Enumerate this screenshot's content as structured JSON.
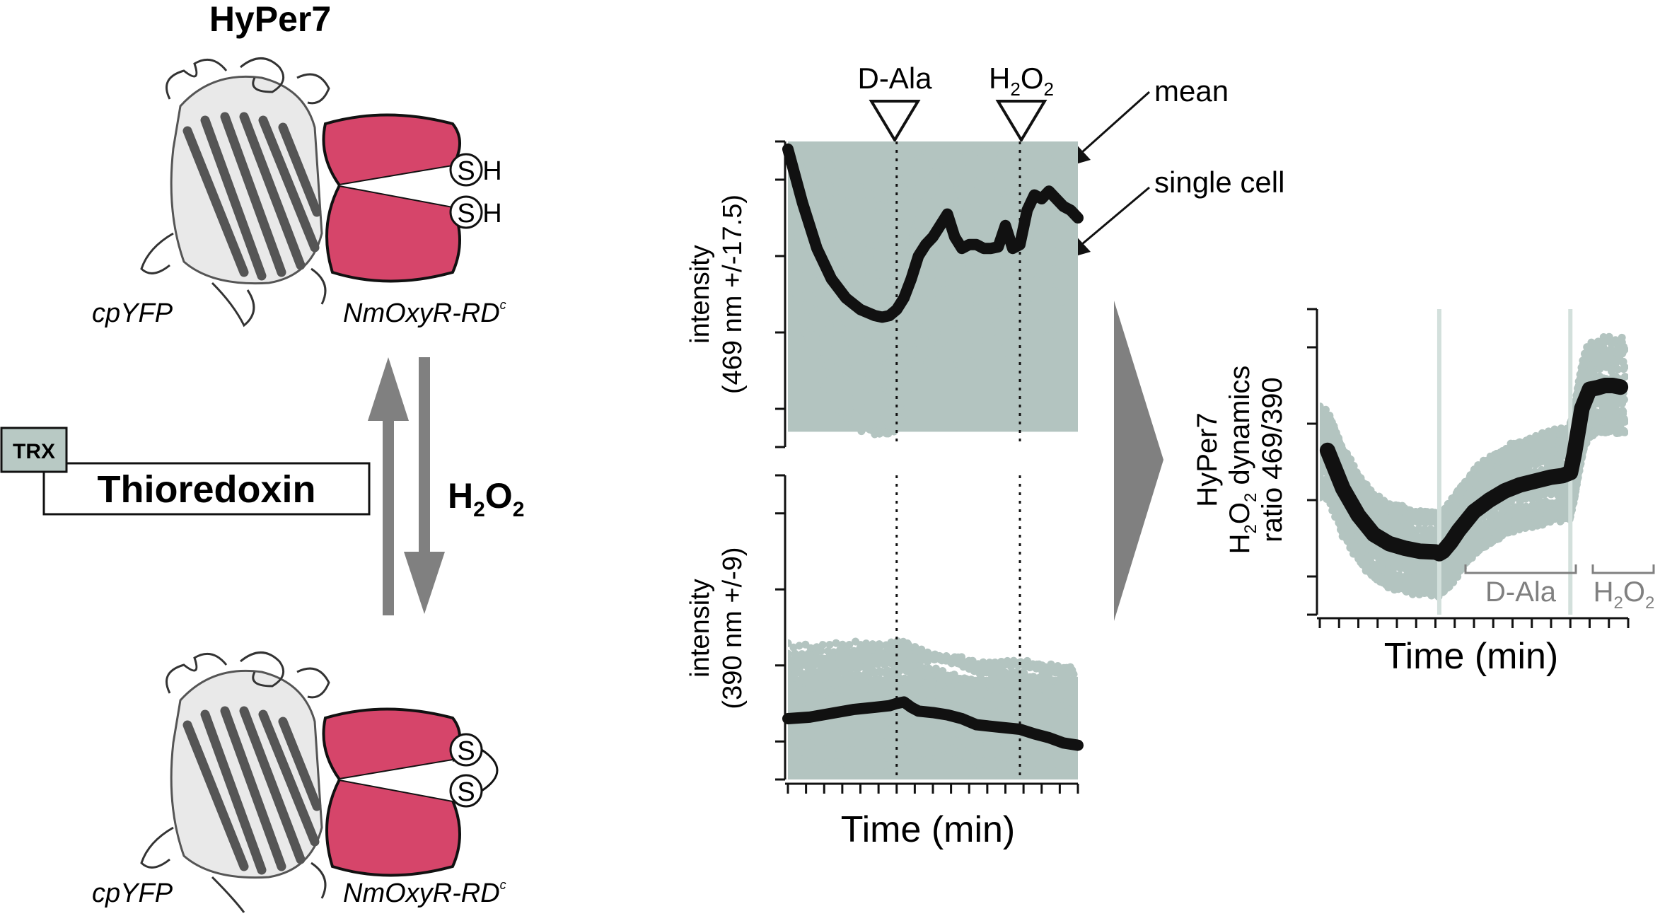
{
  "left_panel": {
    "title": "HyPer7",
    "top_domain_left": "cpYFP",
    "top_domain_right": "NmOxyR-RD",
    "top_domain_right_sup": "c",
    "bottom_domain_left": "cpYFP",
    "bottom_domain_right": "NmOxyR-RD",
    "bottom_domain_right_sup": "c",
    "thiol_letter": "S",
    "thiol_h": "H",
    "trx_tag": "TRX",
    "thioredoxin_label": "Thioredoxin",
    "h2o2_main": "H",
    "h2o2_sub": "2",
    "h2o2_o": "O",
    "h2o2_sub2": "2"
  },
  "annotations": {
    "dala_label": "D-Ala",
    "h2o2_main": "H",
    "h2o2_sub": "2",
    "h2o2_o": "O",
    "h2o2_sub2": "2",
    "mean_label": "mean",
    "single_cell_label": "single cell"
  },
  "colors": {
    "single_cell": "#b3c4c0",
    "mean": "#111111",
    "redox_domain": "#d6456a",
    "protein": "#6b6b6b",
    "arrow": "#808080",
    "trx_box": "#b8c9c4"
  },
  "chart_data": [
    {
      "type": "scatter",
      "ylabel_line1": "intensity",
      "ylabel_line2": "(469 nm +/-17.5)",
      "xlim": [
        0,
        40
      ],
      "ylim": [
        0,
        4
      ],
      "events": [
        {
          "x": 15
        },
        {
          "x": 32
        }
      ],
      "series": [
        {
          "name": "mean",
          "x": [
            0,
            2,
            4,
            6,
            8,
            10,
            12,
            13,
            14,
            15,
            16,
            17,
            18,
            19,
            20,
            21,
            22,
            23,
            24,
            25,
            26,
            27,
            28,
            29,
            30,
            31,
            32,
            33,
            34,
            35,
            36,
            37,
            38,
            39,
            40
          ],
          "y": [
            3.9,
            3.2,
            2.6,
            2.2,
            1.95,
            1.8,
            1.72,
            1.7,
            1.72,
            1.8,
            1.95,
            2.2,
            2.5,
            2.65,
            2.75,
            2.9,
            3.05,
            2.75,
            2.6,
            2.65,
            2.65,
            2.6,
            2.6,
            2.62,
            2.9,
            2.6,
            2.65,
            3.1,
            3.3,
            3.25,
            3.35,
            3.25,
            3.15,
            3.1,
            3.0
          ]
        }
      ]
    },
    {
      "type": "scatter",
      "ylabel_line1": "intensity",
      "ylabel_line2": "(390 nm +/-9)",
      "xlim": [
        0,
        40
      ],
      "ylim": [
        0,
        4
      ],
      "events": [
        {
          "x": 15
        },
        {
          "x": 32
        }
      ],
      "series": [
        {
          "name": "mean",
          "x": [
            0,
            3,
            6,
            9,
            12,
            14,
            15,
            16,
            17,
            18,
            20,
            22,
            24,
            26,
            28,
            30,
            32,
            34,
            36,
            38,
            40
          ],
          "y": [
            0.8,
            0.82,
            0.87,
            0.92,
            0.95,
            0.97,
            1.0,
            1.02,
            0.95,
            0.9,
            0.88,
            0.85,
            0.8,
            0.72,
            0.7,
            0.68,
            0.66,
            0.6,
            0.55,
            0.48,
            0.45
          ]
        }
      ]
    },
    {
      "type": "scatter",
      "ylabel_line1": "HyPer7",
      "ylabel_line2_a": "H",
      "ylabel_line2_sub": "2",
      "ylabel_line2_b": "O",
      "ylabel_line2_sub2": "2",
      "ylabel_line2_c": " dynamics",
      "ylabel_line3": "ratio 469/390",
      "xlabel": "Time (min)",
      "xlim": [
        0,
        40
      ],
      "ylim": [
        0,
        4
      ],
      "events": [
        {
          "x": 15.5
        },
        {
          "x": 32.5
        }
      ],
      "treatment_labels": [
        "D-Ala",
        "H2O2"
      ],
      "series": [
        {
          "name": "mean",
          "x": [
            1,
            3,
            5,
            7,
            9,
            11,
            13,
            15,
            15.5,
            16,
            17,
            18,
            20,
            22,
            24,
            26,
            28,
            30,
            31.5,
            32.5,
            33,
            34,
            35,
            36,
            37,
            38,
            39
          ],
          "y": [
            2.15,
            1.65,
            1.3,
            1.05,
            0.93,
            0.87,
            0.83,
            0.82,
            0.8,
            0.83,
            0.95,
            1.1,
            1.35,
            1.5,
            1.62,
            1.7,
            1.75,
            1.8,
            1.82,
            1.86,
            2.1,
            2.7,
            2.95,
            2.97,
            3.0,
            3.0,
            2.98
          ]
        }
      ]
    }
  ],
  "shared_axis": {
    "xlabel": "Time (min)"
  }
}
